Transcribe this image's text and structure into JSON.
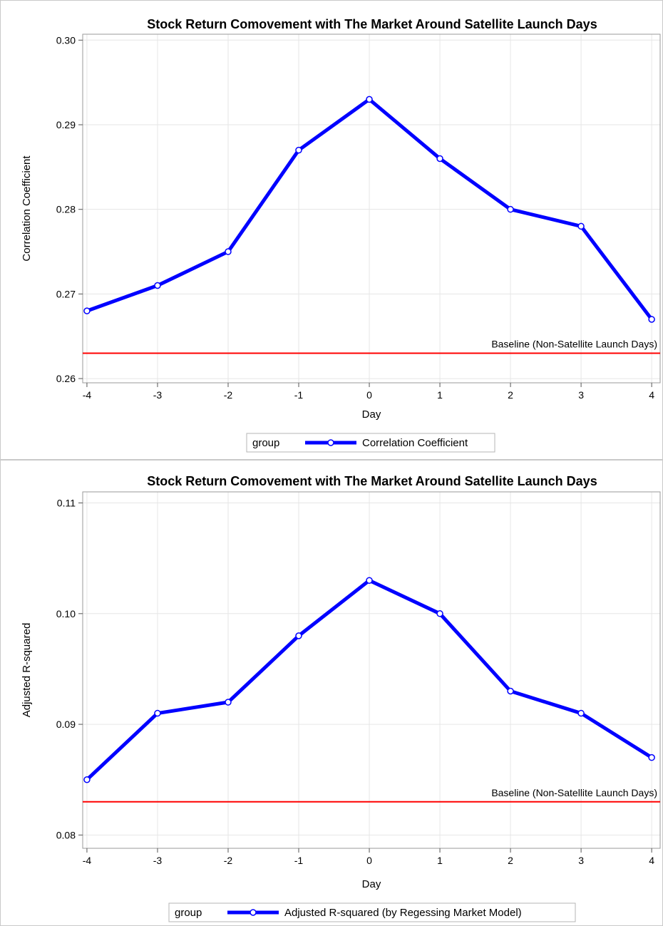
{
  "chart_data": [
    {
      "type": "line",
      "title": "Stock Return Comovement with The Market Around Satellite Launch Days",
      "xlabel": "Day",
      "ylabel": "Correlation Coefficient",
      "x": [
        -4,
        -3,
        -2,
        -1,
        0,
        1,
        2,
        3,
        4
      ],
      "xticks": [
        "-4",
        "-3",
        "-2",
        "-1",
        "0",
        "1",
        "2",
        "3",
        "4"
      ],
      "yticks": [
        "0.26",
        "0.27",
        "0.28",
        "0.29",
        "0.30"
      ],
      "ylim": [
        0.2595,
        0.3007
      ],
      "xlim": [
        -4.06,
        4.12
      ],
      "grid": true,
      "series": [
        {
          "name": "Correlation Coefficient",
          "values": [
            0.268,
            0.271,
            0.275,
            0.287,
            0.293,
            0.286,
            0.28,
            0.278,
            0.267
          ],
          "color": "#0000ff"
        }
      ],
      "reference_line": {
        "value": 0.263,
        "label": "Baseline (Non-Satellite Launch Days)",
        "color": "#ff0000"
      },
      "legend": {
        "title": "group",
        "placement": "bottom"
      }
    },
    {
      "type": "line",
      "title": "Stock Return Comovement with The Market Around Satellite Launch Days",
      "xlabel": "Day",
      "ylabel": "Adjusted R-squared",
      "x": [
        -4,
        -3,
        -2,
        -1,
        0,
        1,
        2,
        3,
        4
      ],
      "xticks": [
        "-4",
        "-3",
        "-2",
        "-1",
        "0",
        "1",
        "2",
        "3",
        "4"
      ],
      "yticks": [
        "0.08",
        "0.09",
        "0.10",
        "0.11"
      ],
      "ylim": [
        0.0788,
        0.111
      ],
      "xlim": [
        -4.06,
        4.12
      ],
      "grid": true,
      "series": [
        {
          "name": "Adjusted R-squared (by Regessing Market Model)",
          "values": [
            0.085,
            0.091,
            0.092,
            0.098,
            0.103,
            0.1,
            0.093,
            0.091,
            0.087
          ],
          "color": "#0000ff"
        }
      ],
      "reference_line": {
        "value": 0.083,
        "label": "Baseline (Non-Satellite Launch Days)",
        "color": "#ff0000"
      },
      "legend": {
        "title": "group",
        "placement": "bottom"
      }
    }
  ]
}
